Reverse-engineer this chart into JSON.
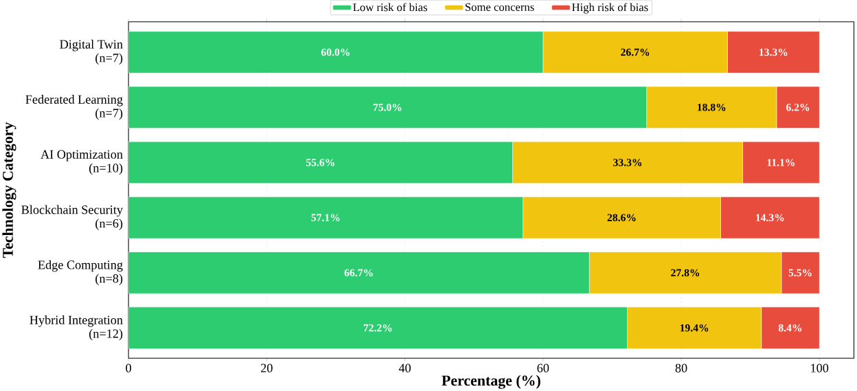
{
  "chart_data": {
    "type": "bar",
    "orientation": "horizontal",
    "stacked": true,
    "xlabel": "Percentage (%)",
    "ylabel": "Technology Category",
    "categories": [
      "Digital Twin\n(n=7)",
      "Federated Learning\n(n=7)",
      "AI Optimization\n(n=10)",
      "Blockchain Security\n(n=6)",
      "Edge Computing\n(n=8)",
      "Hybrid Integration\n(n=12)"
    ],
    "series": [
      {
        "name": "Low risk of bias",
        "color": "#2ecc71",
        "values": [
          60.0,
          75.0,
          55.6,
          57.1,
          66.7,
          72.2
        ],
        "value_labels": [
          "60.0%",
          "75.0%",
          "55.6%",
          "57.1%",
          "66.7%",
          "72.2%"
        ]
      },
      {
        "name": "Some concerns",
        "color": "#f1c40f",
        "values": [
          26.7,
          18.8,
          33.3,
          28.6,
          27.8,
          19.4
        ],
        "value_labels": [
          "26.7%",
          "18.8%",
          "33.3%",
          "28.6%",
          "27.8%",
          "19.4%"
        ]
      },
      {
        "name": "High risk of bias",
        "color": "#e74c3c",
        "values": [
          13.3,
          6.2,
          11.1,
          14.3,
          5.5,
          8.4
        ],
        "value_labels": [
          "13.3%",
          "6.2%",
          "11.1%",
          "14.3%",
          "5.5%",
          "8.4%"
        ]
      }
    ],
    "xlim": [
      0,
      105
    ],
    "xticks": [
      0,
      20,
      40,
      60,
      80,
      100
    ],
    "grid": "x",
    "legend": "top"
  }
}
